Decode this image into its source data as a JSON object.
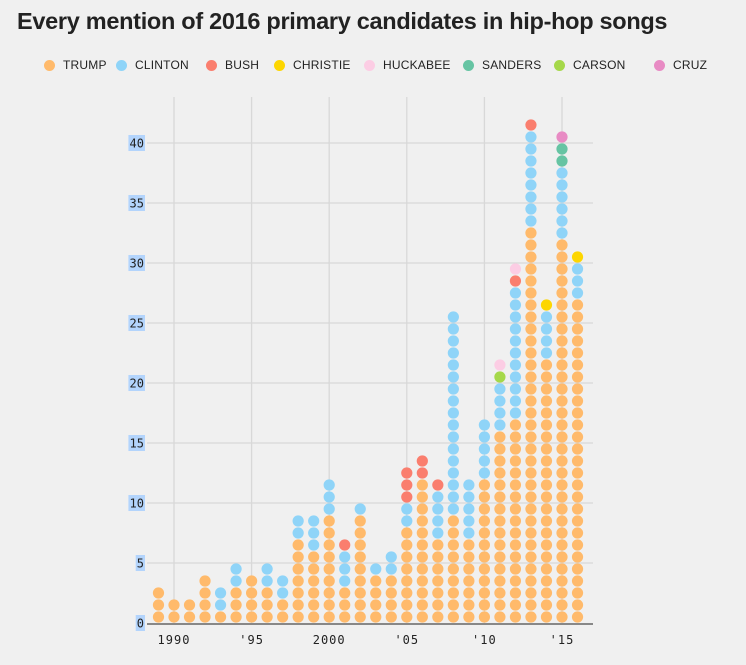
{
  "chart_data": {
    "type": "scatter",
    "subtype": "stacked-dot-column",
    "title": "Every mention of 2016 primary candidates in hip-hop songs",
    "xlabel": "",
    "ylabel": "",
    "ylim": [
      0,
      42
    ],
    "xlim": [
      1989,
      2016
    ],
    "grid": true,
    "legend_position": "top",
    "y_ticks": [
      0,
      5,
      10,
      15,
      20,
      25,
      30,
      35,
      40
    ],
    "x_ticks": [
      {
        "year": 1990,
        "label": "1990"
      },
      {
        "year": 1995,
        "label": "'95"
      },
      {
        "year": 2000,
        "label": "2000"
      },
      {
        "year": 2005,
        "label": "'05"
      },
      {
        "year": 2010,
        "label": "'10"
      },
      {
        "year": 2015,
        "label": "'15"
      }
    ],
    "stack_order": [
      "TRUMP",
      "CLINTON",
      "BUSH",
      "CHRISTIE",
      "HUCKABEE",
      "CARSON",
      "SANDERS",
      "CRUZ"
    ],
    "series": [
      {
        "name": "TRUMP",
        "color": "#ffba6b"
      },
      {
        "name": "CLINTON",
        "color": "#8fd4f8"
      },
      {
        "name": "BUSH",
        "color": "#fa7e6e"
      },
      {
        "name": "CHRISTIE",
        "color": "#fdd600"
      },
      {
        "name": "HUCKABEE",
        "color": "#fccde4"
      },
      {
        "name": "SANDERS",
        "color": "#66c4a3"
      },
      {
        "name": "CARSON",
        "color": "#a5d84a"
      },
      {
        "name": "CRUZ",
        "color": "#e88bc4"
      }
    ],
    "years": [
      {
        "year": 1989,
        "counts": {
          "TRUMP": 3
        }
      },
      {
        "year": 1990,
        "counts": {
          "TRUMP": 2
        }
      },
      {
        "year": 1991,
        "counts": {
          "TRUMP": 2
        }
      },
      {
        "year": 1992,
        "counts": {
          "TRUMP": 4
        }
      },
      {
        "year": 1993,
        "counts": {
          "TRUMP": 1,
          "CLINTON": 2
        }
      },
      {
        "year": 1994,
        "counts": {
          "TRUMP": 3,
          "CLINTON": 2
        }
      },
      {
        "year": 1995,
        "counts": {
          "TRUMP": 4
        }
      },
      {
        "year": 1996,
        "counts": {
          "TRUMP": 3,
          "CLINTON": 2
        }
      },
      {
        "year": 1997,
        "counts": {
          "TRUMP": 2,
          "CLINTON": 2
        }
      },
      {
        "year": 1998,
        "counts": {
          "TRUMP": 7,
          "CLINTON": 2
        }
      },
      {
        "year": 1999,
        "counts": {
          "TRUMP": 6,
          "CLINTON": 3
        }
      },
      {
        "year": 2000,
        "counts": {
          "TRUMP": 9,
          "CLINTON": 3
        }
      },
      {
        "year": 2001,
        "counts": {
          "TRUMP": 3,
          "CLINTON": 3,
          "BUSH": 1
        }
      },
      {
        "year": 2002,
        "counts": {
          "TRUMP": 9,
          "CLINTON": 1
        }
      },
      {
        "year": 2003,
        "counts": {
          "TRUMP": 4,
          "CLINTON": 1
        }
      },
      {
        "year": 2004,
        "counts": {
          "TRUMP": 4,
          "CLINTON": 2
        }
      },
      {
        "year": 2005,
        "counts": {
          "TRUMP": 8,
          "CLINTON": 2,
          "BUSH": 3
        }
      },
      {
        "year": 2006,
        "counts": {
          "TRUMP": 12,
          "BUSH": 2
        }
      },
      {
        "year": 2007,
        "counts": {
          "TRUMP": 7,
          "CLINTON": 4,
          "BUSH": 1
        }
      },
      {
        "year": 2008,
        "counts": {
          "TRUMP": 9,
          "CLINTON": 17
        }
      },
      {
        "year": 2009,
        "counts": {
          "TRUMP": 7,
          "CLINTON": 5
        }
      },
      {
        "year": 2010,
        "counts": {
          "TRUMP": 12,
          "CLINTON": 5
        }
      },
      {
        "year": 2011,
        "counts": {
          "TRUMP": 16,
          "CLINTON": 4,
          "CARSON": 1,
          "HUCKABEE": 1
        }
      },
      {
        "year": 2012,
        "counts": {
          "TRUMP": 17,
          "CLINTON": 11,
          "BUSH": 1,
          "HUCKABEE": 1
        }
      },
      {
        "year": 2013,
        "counts": {
          "TRUMP": 33,
          "CLINTON": 8,
          "BUSH": 1
        }
      },
      {
        "year": 2014,
        "counts": {
          "TRUMP": 22,
          "CLINTON": 4,
          "CHRISTIE": 1
        }
      },
      {
        "year": 2015,
        "counts": {
          "TRUMP": 32,
          "CLINTON": 6,
          "SANDERS": 2,
          "CRUZ": 1
        }
      },
      {
        "year": 2016,
        "counts": {
          "TRUMP": 27,
          "CLINTON": 3,
          "CHRISTIE": 1
        }
      }
    ],
    "column_orders": {
      "2011": [
        "TRUMP",
        "CLINTON",
        "CARSON",
        "HUCKABEE"
      ],
      "2012": [
        "TRUMP",
        "CLINTON",
        "BUSH",
        "HUCKABEE"
      ],
      "2015": [
        "TRUMP",
        "CLINTON",
        "SANDERS",
        "CRUZ"
      ]
    }
  },
  "colors": {
    "background": "#f0f0f0",
    "grid": "#d8d8d8",
    "axis": "#888888",
    "tick_highlight": "#b3d4fc"
  }
}
